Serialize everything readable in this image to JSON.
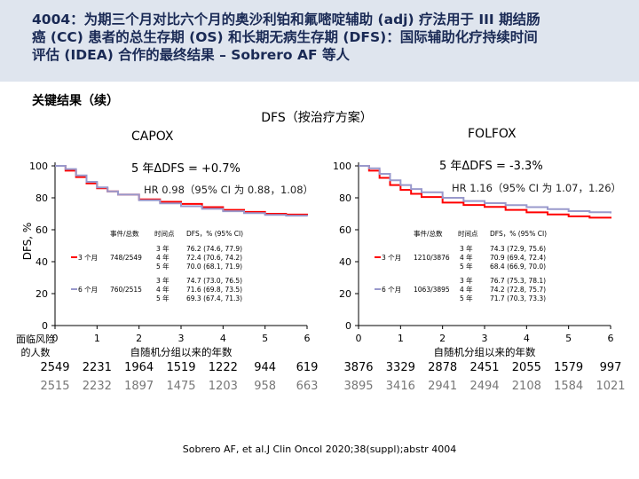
{
  "header": {
    "title_lines": [
      "4004：为期三个月对比六个月的奥沙利铂和氟嘧啶辅助 (adj) 疗法用于 III 期结肠",
      "癌 (CC) 患者的总生存期 (OS) 和长期无病生存期 (DFS)：国际辅助化疗持续时间",
      "评估 (IDEA) 合作的最终结果 – Sobrero AF 等人"
    ]
  },
  "subtitle": "关键结果（续）",
  "figure_title": "DFS（按治疗方案）",
  "ylabel": "DFS, %",
  "xlabel": "自随机分组以来的年数",
  "risk_label_lines": [
    "面临风险",
    "的人数"
  ],
  "colors": {
    "arm3": "#ff0000",
    "arm6": "#9999cc",
    "accent": "#1a2a55"
  },
  "chart_data": [
    {
      "type": "line",
      "title": "CAPOX",
      "delta": "5 年ΔDFS = +0.7%",
      "hr": "HR 0.98（95% CI 为 0.88，1.08）",
      "x_ticks": [
        "0",
        "1",
        "2",
        "3",
        "4",
        "5",
        "6"
      ],
      "y_ticks": [
        "0",
        "20",
        "40",
        "60",
        "80",
        "100"
      ],
      "xlim": [
        0,
        6
      ],
      "ylim": [
        0,
        100
      ],
      "legend": {
        "headers": [
          "事件/总数",
          "时间点",
          "DFS，% (95% CI)"
        ],
        "arms": [
          {
            "name": "3 个月",
            "events": "748/2549",
            "timepoints": [
              "3 年",
              "4 年",
              "5 年"
            ],
            "dfs": [
              "76.2 (74.6, 77.9)",
              "72.4 (70.6, 74.2)",
              "70.0 (68.1, 71.9)"
            ]
          },
          {
            "name": "6 个月",
            "events": "760/2515",
            "timepoints": [
              "3 年",
              "4 年",
              "5 年"
            ],
            "dfs": [
              "74.7 (73.0, 76.5)",
              "71.6 (69.8, 73.5)",
              "69.3 (67.4, 71.3)"
            ]
          }
        ]
      },
      "series": [
        {
          "name": "3 个月",
          "x": [
            0,
            0.25,
            0.5,
            0.75,
            1,
            1.25,
            1.5,
            2,
            2.5,
            3,
            3.5,
            4,
            4.5,
            5,
            5.5,
            6
          ],
          "y": [
            100,
            97,
            93,
            89,
            86,
            84,
            82,
            79,
            77.5,
            76.2,
            74.2,
            72.4,
            71.2,
            70.0,
            69.5,
            69.0
          ]
        },
        {
          "name": "6 个月",
          "x": [
            0,
            0.25,
            0.5,
            0.75,
            1,
            1.25,
            1.5,
            2,
            2.5,
            3,
            3.5,
            4,
            4.5,
            5,
            5.5,
            6
          ],
          "y": [
            100,
            98,
            94,
            90,
            86.5,
            84,
            82,
            78.5,
            76.5,
            74.7,
            73.1,
            71.6,
            70.4,
            69.3,
            68.8,
            68.4
          ]
        }
      ],
      "at_risk": [
        [
          "2549",
          "2231",
          "1964",
          "1519",
          "1222",
          "944",
          "619"
        ],
        [
          "2515",
          "2232",
          "1897",
          "1475",
          "1203",
          "958",
          "663"
        ]
      ]
    },
    {
      "type": "line",
      "title": "FOLFOX",
      "delta": "5 年ΔDFS = -3.3%",
      "hr": "HR 1.16（95% CI 为 1.07，1.26）",
      "x_ticks": [
        "0",
        "1",
        "2",
        "3",
        "4",
        "5",
        "6"
      ],
      "y_ticks": [
        "0",
        "20",
        "40",
        "60",
        "80",
        "100"
      ],
      "xlim": [
        0,
        6
      ],
      "ylim": [
        0,
        100
      ],
      "legend": {
        "headers": [
          "事件/总数",
          "时间点",
          "DFS，% (95% CI)"
        ],
        "arms": [
          {
            "name": "3 个月",
            "events": "1210/3876",
            "timepoints": [
              "3 年",
              "4 年",
              "5 年"
            ],
            "dfs": [
              "74.3 (72.9, 75.6)",
              "70.9 (69.4, 72.4)",
              "68.4 (66.9, 70.0)"
            ]
          },
          {
            "name": "6 个月",
            "events": "1063/3895",
            "timepoints": [
              "3 年",
              "4 年",
              "5 年"
            ],
            "dfs": [
              "76.7 (75.3, 78.1)",
              "74.2 (72.8, 75.7)",
              "71.7 (70.3, 73.3)"
            ]
          }
        ]
      },
      "series": [
        {
          "name": "3 个月",
          "x": [
            0,
            0.25,
            0.5,
            0.75,
            1,
            1.25,
            1.5,
            2,
            2.5,
            3,
            3.5,
            4,
            4.5,
            5,
            5.5,
            6
          ],
          "y": [
            100,
            97,
            92.5,
            88,
            85,
            82.5,
            80.5,
            77,
            75.5,
            74.3,
            72.4,
            70.9,
            69.6,
            68.4,
            67.6,
            67.0
          ]
        },
        {
          "name": "6 个月",
          "x": [
            0,
            0.25,
            0.5,
            0.75,
            1,
            1.25,
            1.5,
            2,
            2.5,
            3,
            3.5,
            4,
            4.5,
            5,
            5.5,
            6
          ],
          "y": [
            100,
            98.5,
            95,
            91,
            88,
            85.5,
            83.5,
            80,
            78,
            76.7,
            75.4,
            74.2,
            72.9,
            71.7,
            71.0,
            70.3
          ]
        }
      ],
      "at_risk": [
        [
          "3876",
          "3329",
          "2878",
          "2451",
          "2055",
          "1579",
          "997"
        ],
        [
          "3895",
          "3416",
          "2941",
          "2494",
          "2108",
          "1584",
          "1021"
        ]
      ]
    }
  ],
  "reference": "Sobrero AF, et al.J Clin Oncol 2020;38(suppl);abstr 4004"
}
